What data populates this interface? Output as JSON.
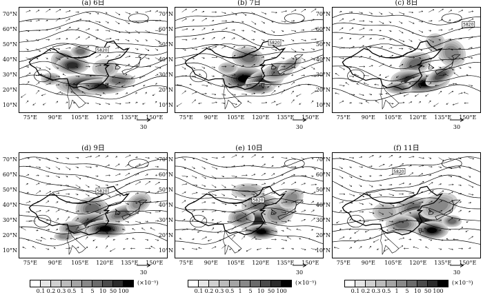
{
  "panels": [
    {
      "title": "(a) 6日"
    },
    {
      "title": "(b) 7日"
    },
    {
      "title": "(c) 8日"
    },
    {
      "title": "(d) 9日"
    },
    {
      "title": "(e) 10日"
    },
    {
      "title": "(f) 11日"
    }
  ],
  "lat_labels": [
    "70°N",
    "60°N",
    "50°N",
    "40°N",
    "30°N",
    "20°N",
    "10°N"
  ],
  "lon_labels": [
    "75°E",
    "90°E",
    "105°E",
    "120°E",
    "135°E",
    "150°E"
  ],
  "reference_vector": "30",
  "contour_label": "5820",
  "colorbar": {
    "levels": [
      "0.1",
      "0.2",
      "0.3",
      "0.5",
      "1",
      "5",
      "10",
      "50",
      "100"
    ],
    "unit": "(×10⁻⁵)",
    "colors": [
      "#ffffff",
      "#e6e6e6",
      "#d0d0d0",
      "#bbbbbb",
      "#a4a4a4",
      "#888888",
      "#6a6a6a",
      "#4a4a4a",
      "#2a2a2a",
      "#000000"
    ]
  }
}
